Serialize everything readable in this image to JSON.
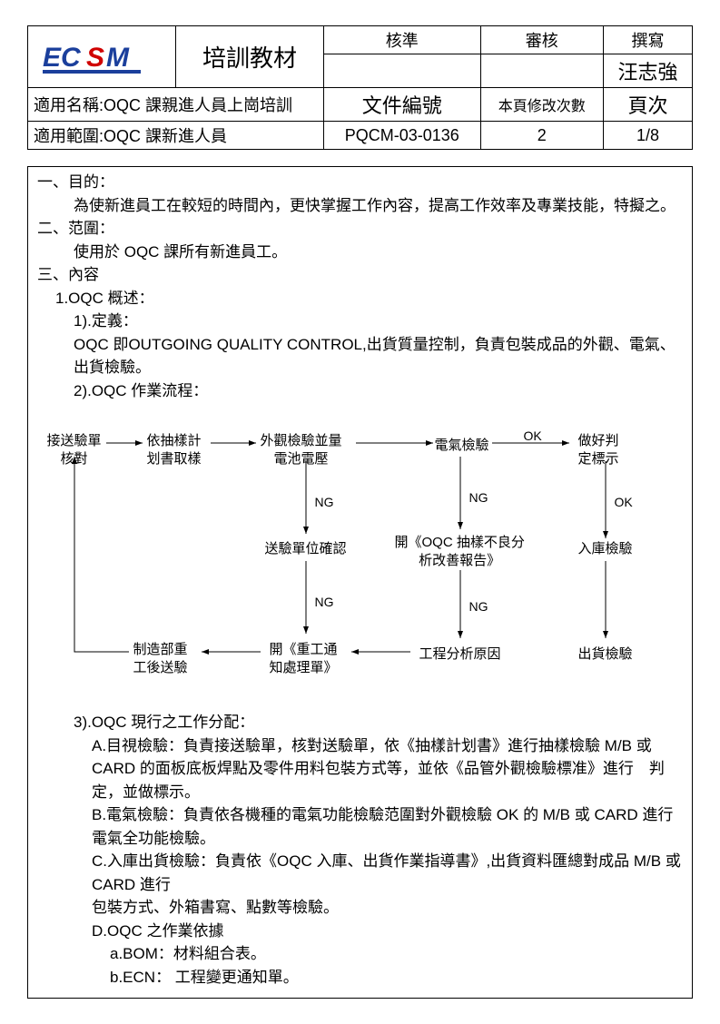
{
  "header": {
    "logo_text": "ECSM",
    "logo_colors": {
      "c1": "#1b3f9c",
      "c2": "#d00000"
    },
    "title": "培訓教材",
    "col_approve": "核準",
    "col_review": "審核",
    "col_write": "撰寫",
    "writer": "汪志強",
    "row1_label": "適用名稱:OQC 課親進人員上崗培訓",
    "row1_doc": "文件編號",
    "row1_rev_label": "本頁修改次數",
    "row1_page_label": "頁次",
    "row2_label": "適用範圍:OQC 課新進人員",
    "row2_doc": "PQCM-03-0136",
    "row2_rev": "2",
    "row2_page": "1/8"
  },
  "body": {
    "sec1_h": "一、目的：",
    "sec1_t": "為使新進員工在較短的時間內，更快掌握工作內容，提高工作效率及專業技能，特擬之。",
    "sec2_h": "二、范圍：",
    "sec2_t": "使用於 OQC 課所有新進員工。",
    "sec3_h": "三、內容",
    "s3_1": "1.OQC 概述：",
    "s3_1_1h": "1).定義：",
    "s3_1_1t": "OQC 即OUTGOING QUALITY CONTROL,出貨質量控制，負責包裝成品的外觀、電氣、出貨檢驗。",
    "s3_1_2h": "2).OQC 作業流程：",
    "s3_3h": "3).OQC 現行之工作分配：",
    "s3_3A": "A.目視檢驗：負責接送驗單，核對送驗單，依《抽樣計划書》進行抽樣檢驗 M/B 或 CARD 的面板底板焊點及零件用料包裝方式等，並依《品管外觀檢驗標准》進行　判定，並做標示。",
    "s3_3B": "B.電氣檢驗：負責依各機種的電氣功能檢驗范圍對外觀檢驗 OK 的 M/B 或 CARD 進行電氣全功能檢驗。",
    "s3_3C": "C.入庫出貨檢驗：負責依《OQC 入庫、出貨作業指導書》,出貨資料匯總對成品 M/B 或 CARD 進行",
    "s3_3C2": "包裝方式、外箱書寫、點數等檢驗。",
    "s3_3D": "D.OQC 之作業依據",
    "s3_3Da": "a.BOM：材料組合表。",
    "s3_3Db": "b.ECN： 工程變更通知單。"
  },
  "flow": {
    "n1": "接送驗單\n核對",
    "n2": "依抽樣計\n划書取樣",
    "n3": "外觀檢驗並量\n電池電壓",
    "n4": "電氣檢驗",
    "n5": "做好判\n定標示",
    "n6": "送驗單位確認",
    "n7": "開《OQC 抽樣不良分\n析改善報告》",
    "n8": "入庫檢驗",
    "n9": "制造部重\n工後送驗",
    "n10": "開《重工通\n知處理單》",
    "n11": "工程分析原因",
    "n12": "出貨檢驗",
    "lbl_ng": "NG",
    "lbl_ok": "OK"
  }
}
